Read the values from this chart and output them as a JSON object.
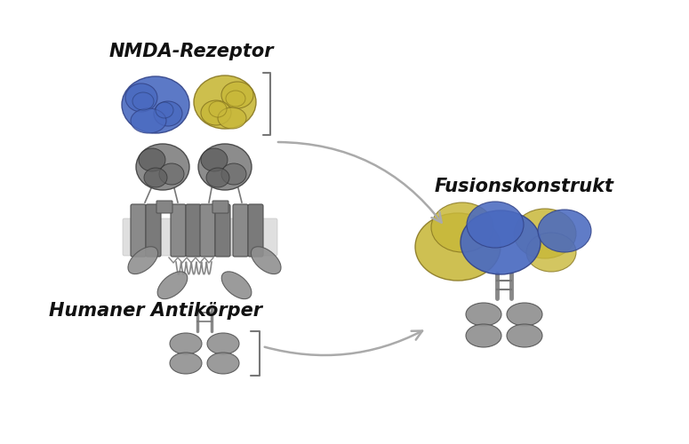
{
  "title_nmda": "NMDA-Rezeptor",
  "title_fusion": "Fusionskonstrukt",
  "title_antibody": "Humaner Antikörper",
  "blue_color": "#4a6ac0",
  "yellow_color": "#c8b83a",
  "gray_color": "#909090",
  "gray_dark": "#606060",
  "gray_light": "#b0b0b0",
  "gray_membrane": "#c8c8c8",
  "bg_color": "#ffffff",
  "text_color": "#111111",
  "arrow_color": "#aaaaaa",
  "title_fontsize": 15,
  "label_fontsize": 13
}
